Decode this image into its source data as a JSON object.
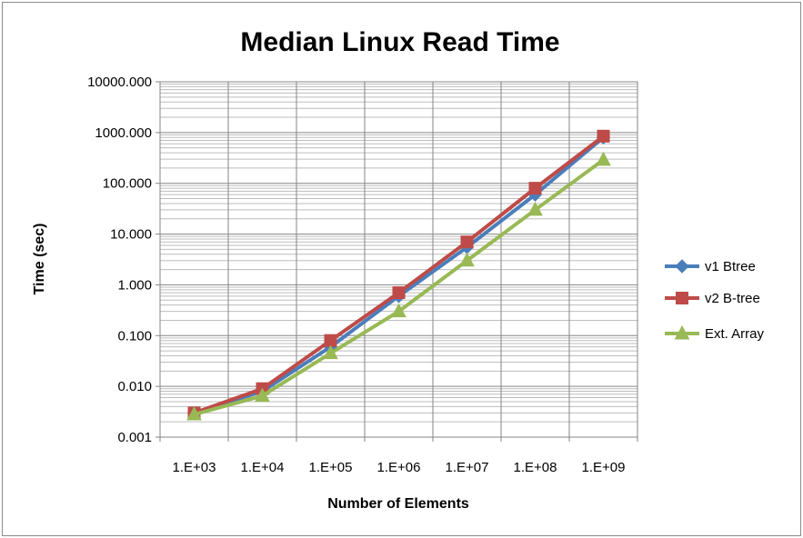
{
  "chart_data": {
    "type": "line",
    "title": "Median Linux Read Time",
    "xlabel": "Number of Elements",
    "ylabel": "Time (sec)",
    "y_scale": "log",
    "ylim": [
      0.001,
      10000
    ],
    "grid": true,
    "legend_position": "right",
    "categories": [
      "1.E+03",
      "1.E+04",
      "1.E+05",
      "1.E+06",
      "1.E+07",
      "1.E+08",
      "1.E+09"
    ],
    "x_tick_labels": [
      "1.E+03",
      "1.E+04",
      "1.E+05",
      "1.E+06",
      "1.E+07",
      "1.E+08",
      "1.E+09"
    ],
    "y_tick_labels": [
      "10000.000",
      "1000.000",
      "100.000",
      "10.000",
      "1.000",
      "0.100",
      "0.010",
      "0.001"
    ],
    "series": [
      {
        "name": "v1 Btree",
        "color": "#4a7ebb",
        "marker": "diamond",
        "values": [
          0.003,
          0.008,
          0.06,
          0.6,
          5.5,
          60,
          800
        ]
      },
      {
        "name": "v2 B-tree",
        "color": "#be4b48",
        "marker": "square",
        "values": [
          0.003,
          0.009,
          0.08,
          0.7,
          7,
          80,
          850
        ]
      },
      {
        "name": "Ext. Array",
        "color": "#98b954",
        "marker": "triangle",
        "values": [
          0.0028,
          0.0065,
          0.045,
          0.3,
          3,
          30,
          290
        ]
      }
    ]
  }
}
